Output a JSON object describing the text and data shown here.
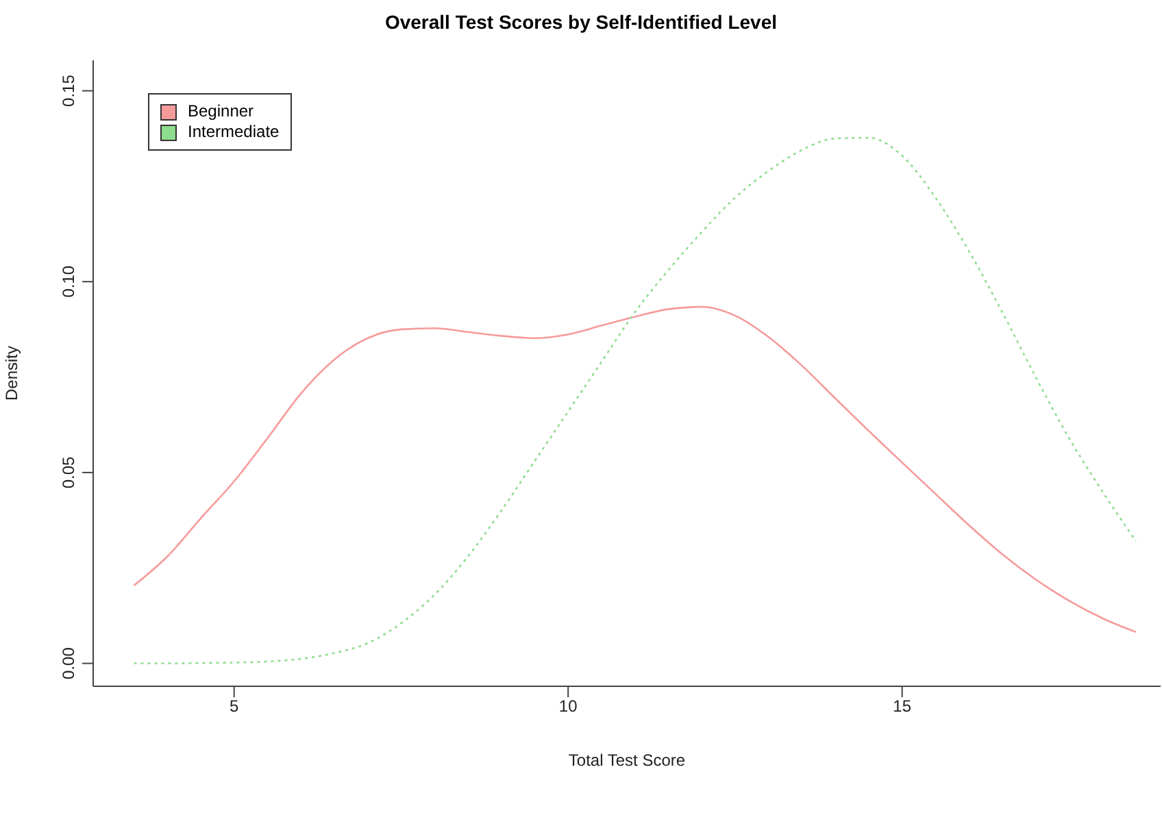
{
  "chart_data": {
    "type": "line",
    "title": "Overall Test Scores by Self-Identified Level",
    "xlabel": "Total Test Score",
    "ylabel": "Density",
    "x": [
      3.5,
      4,
      4.5,
      5,
      5.5,
      6,
      6.5,
      7,
      7.5,
      8,
      8.5,
      9,
      9.5,
      10,
      10.5,
      11,
      11.5,
      12,
      12.5,
      13,
      13.5,
      14,
      14.5,
      15,
      15.5,
      16,
      16.5,
      17,
      17.5,
      18,
      18.5
    ],
    "series": [
      {
        "name": "Beginner",
        "color": "#f79a9a",
        "line_style": "solid",
        "values": [
          0.0204,
          0.028,
          0.038,
          0.0477,
          0.059,
          0.0707,
          0.0796,
          0.0852,
          0.0875,
          0.0878,
          0.0868,
          0.0858,
          0.0852,
          0.0862,
          0.0885,
          0.0908,
          0.0928,
          0.0934,
          0.0911,
          0.0855,
          0.078,
          0.0694,
          0.0609,
          0.0526,
          0.0444,
          0.0362,
          0.0286,
          0.022,
          0.0164,
          0.0118,
          0.0082
        ]
      },
      {
        "name": "Intermediate",
        "color": "#8edc8e",
        "line_style": "dotted",
        "values": [
          0,
          0,
          0.0001,
          0.0002,
          0.0005,
          0.0012,
          0.0027,
          0.0053,
          0.0105,
          0.018,
          0.028,
          0.04,
          0.053,
          0.066,
          0.079,
          0.092,
          0.103,
          0.113,
          0.122,
          0.129,
          0.1345,
          0.1375,
          0.1377,
          0.133,
          0.122,
          0.108,
          0.092,
          0.075,
          0.059,
          0.045,
          0.032
        ]
      }
    ],
    "xlim": [
      2.89,
      18.87
    ],
    "ylim": [
      -0.006,
      0.158
    ],
    "xticks": [
      5,
      10,
      15
    ],
    "yticks": [
      {
        "value": 0,
        "label": "0.00"
      },
      {
        "value": 0.05,
        "label": "0.05"
      },
      {
        "value": 0.1,
        "label": "0.10"
      },
      {
        "value": 0.15,
        "label": "0.15"
      }
    ],
    "legend": "top left",
    "marker": "none",
    "grid": false
  }
}
